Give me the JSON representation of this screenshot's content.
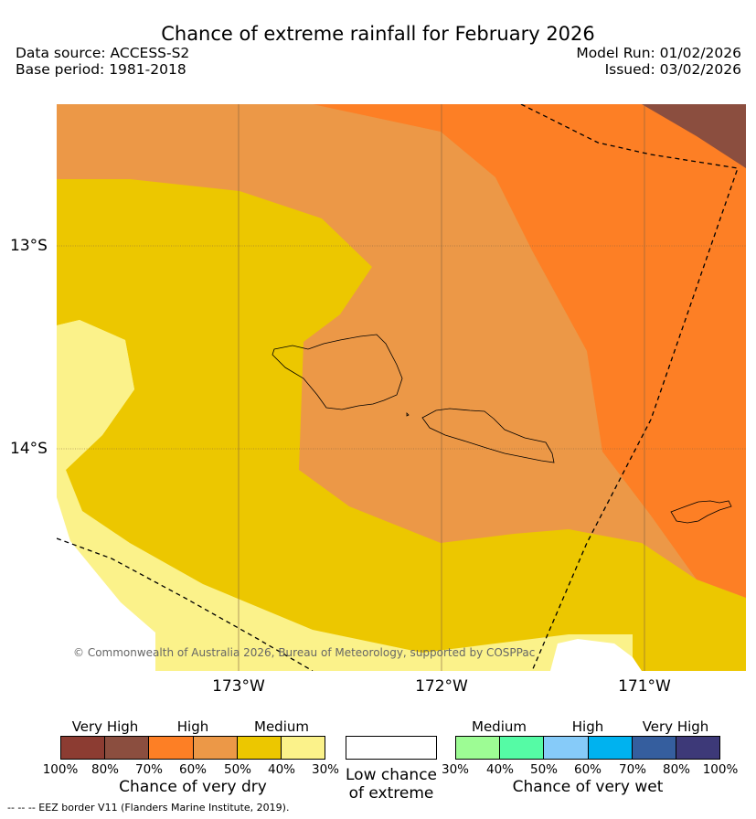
{
  "title": "Chance of extreme rainfall for February 2026",
  "header": {
    "data_source": "Data source: ACCESS-S2",
    "base_period": "Base period: 1981-2018",
    "model_run": "Model Run: 01/02/2026",
    "issued": "Issued: 03/02/2026"
  },
  "map": {
    "latitude_labels": [
      "13°S",
      "14°S"
    ],
    "longitude_labels": [
      "173°W",
      "172°W",
      "171°W"
    ],
    "copyright": "© Commonwealth of Australia 2026, Bureau of Meteorology, supported by COSPPac"
  },
  "legend": {
    "dry": {
      "headers": [
        "Very High",
        "High",
        "Medium"
      ],
      "ticks": [
        "100%",
        "80%",
        "70%",
        "60%",
        "50%",
        "40%",
        "30%"
      ],
      "colors": [
        "#8c3c32",
        "#8b4e3f",
        "#fd7f25",
        "#ec9847",
        "#ecc700",
        "#fbf28a"
      ],
      "title": "Chance of very dry"
    },
    "low": {
      "line1": "Low chance",
      "line2": "of extreme"
    },
    "wet": {
      "headers": [
        "Medium",
        "High",
        "Very High"
      ],
      "ticks": [
        "30%",
        "40%",
        "50%",
        "60%",
        "70%",
        "80%",
        "100%"
      ],
      "colors": [
        "#9dfc94",
        "#55fba5",
        "#86cbf9",
        "#00b2ef",
        "#355e9e",
        "#3d3978"
      ],
      "title": "Chance of very wet"
    }
  },
  "footer": "--  --  -- EEZ border V11 (Flanders Marine Institute, 2019)."
}
